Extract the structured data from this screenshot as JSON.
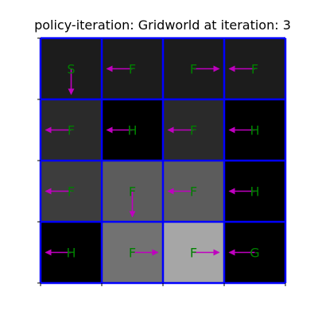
{
  "title": "policy-iteration: Gridworld at iteration: 3",
  "colors": {
    "grid_line": "#0000ff",
    "letter": "#008000",
    "arrow": "#bf00bf",
    "axis": "#000000"
  },
  "grid": {
    "rows": 4,
    "cols": 4,
    "cells": [
      [
        {
          "letter": "S",
          "shade": "#1c1c1c",
          "action": "down"
        },
        {
          "letter": "F",
          "shade": "#1c1c1c",
          "action": "left"
        },
        {
          "letter": "F",
          "shade": "#1c1c1c",
          "action": "right"
        },
        {
          "letter": "F",
          "shade": "#1c1c1c",
          "action": "left"
        }
      ],
      [
        {
          "letter": "F",
          "shade": "#2a2a2a",
          "action": "left"
        },
        {
          "letter": "H",
          "shade": "#000000",
          "action": "left"
        },
        {
          "letter": "F",
          "shade": "#2a2a2a",
          "action": "left"
        },
        {
          "letter": "H",
          "shade": "#000000",
          "action": "left"
        }
      ],
      [
        {
          "letter": "F",
          "shade": "#3d3d3d",
          "action": "left"
        },
        {
          "letter": "F",
          "shade": "#5c5c5c",
          "action": "down"
        },
        {
          "letter": "F",
          "shade": "#5c5c5c",
          "action": "left"
        },
        {
          "letter": "H",
          "shade": "#000000",
          "action": "left"
        }
      ],
      [
        {
          "letter": "H",
          "shade": "#000000",
          "action": "left"
        },
        {
          "letter": "F",
          "shade": "#727272",
          "action": "right"
        },
        {
          "letter": "F",
          "shade": "#a6a6a6",
          "action": "right"
        },
        {
          "letter": "G",
          "shade": "#000000",
          "action": "left"
        }
      ]
    ]
  }
}
